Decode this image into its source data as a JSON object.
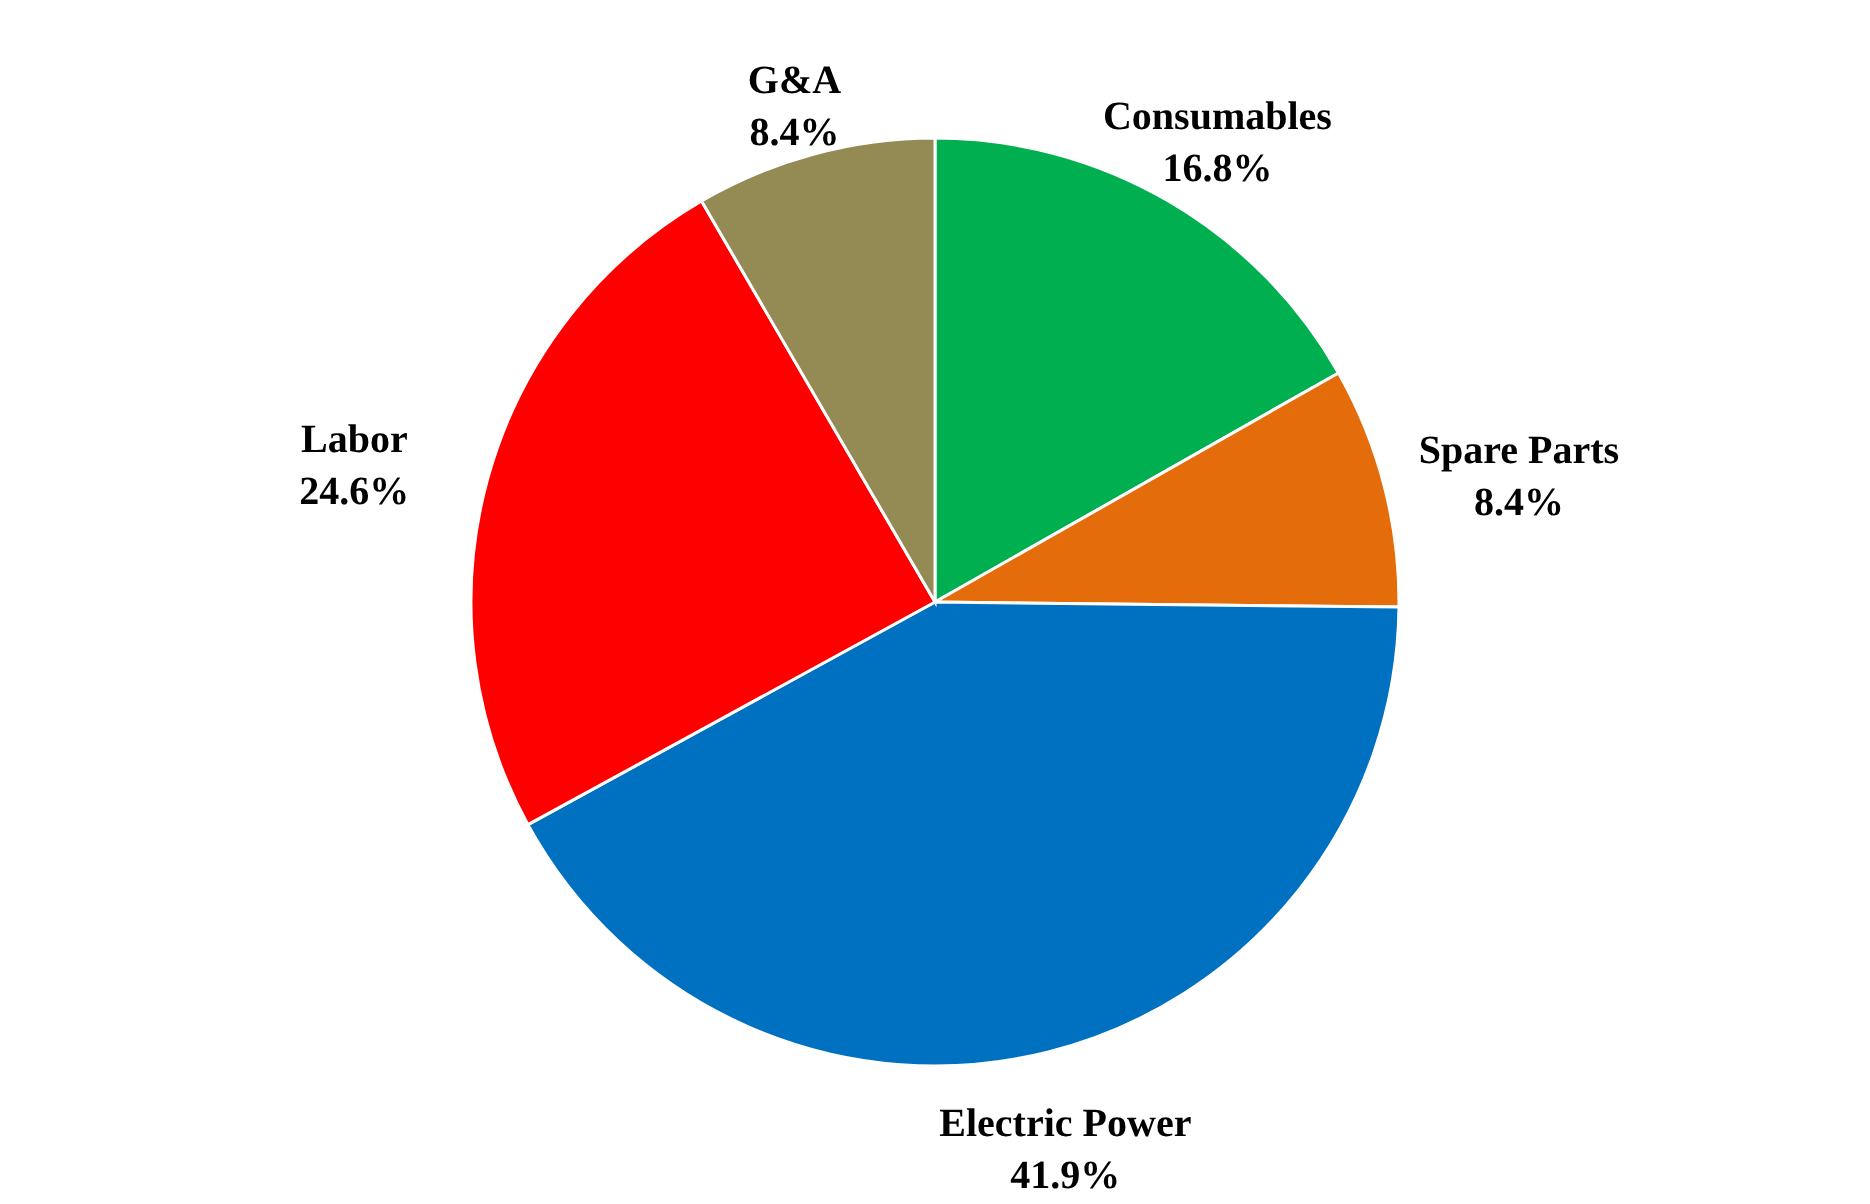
{
  "chart_data": {
    "type": "pie",
    "categories": [
      "Consumables",
      "Spare Parts",
      "Electric Power",
      "Labor",
      "G&A"
    ],
    "values": [
      16.8,
      8.4,
      41.9,
      24.6,
      8.4
    ],
    "value_labels": [
      "16.8%",
      "8.4%",
      "41.9%",
      "24.6%",
      "8.4%"
    ],
    "colors": [
      "#00b050",
      "#e46c0a",
      "#0070c0",
      "#ff0000",
      "#948a54"
    ]
  }
}
